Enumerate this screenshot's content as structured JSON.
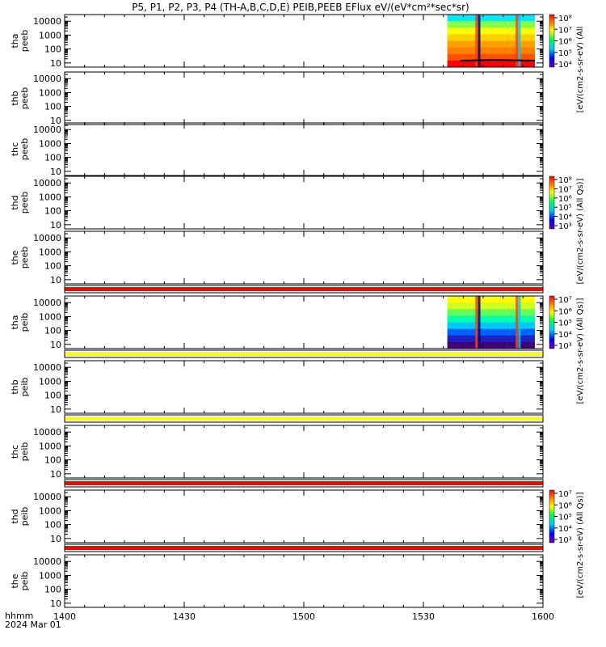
{
  "title": "P5, P1, P2, P3, P4 (TH-A,B,C,D,E) PEIB,PEEB EFlux eV/(eV*cm²*sec*sr)",
  "footer": {
    "time_label": "hhmm",
    "date_label": "2024 Mar 01"
  },
  "chart_data": {
    "type": "heatmap",
    "title": "P5, P1, P2, P3, P4 (TH-A,B,C,D,E) PEIB,PEEB EFlux eV/(eV*cm²*sec*sr)",
    "xlabel": "hhmm",
    "x_ticks": [
      "1400",
      "1430",
      "1500",
      "1530",
      "1600"
    ],
    "x_range": [
      "14:00",
      "16:00"
    ],
    "y_scale": "log",
    "y_ticks": [
      "10",
      "100",
      "1000",
      "10000"
    ],
    "colormap": [
      "#6a0094",
      "#0000ff",
      "#00c8ff",
      "#00ff60",
      "#ffff00",
      "#ff8000",
      "#ff0000"
    ],
    "panels": [
      {
        "probe": "tha",
        "product": "peeb",
        "label1": "tha",
        "label2": "peeb",
        "has_data": true,
        "data_start": "15:36",
        "data_end": "16:00",
        "bar": null
      },
      {
        "probe": "thb",
        "product": "peeb",
        "label1": "thb",
        "label2": "peeb",
        "has_data": false,
        "bar": null
      },
      {
        "probe": "thc",
        "product": "peeb",
        "label1": "thc",
        "label2": "peeb",
        "has_data": false,
        "bar": null
      },
      {
        "probe": "thd",
        "product": "peeb",
        "label1": "thd",
        "label2": "peeb",
        "has_data": false,
        "bar": null
      },
      {
        "probe": "the",
        "product": "peeb",
        "label1": "the",
        "label2": "peeb",
        "has_data": false,
        "bar": "#ff0000"
      },
      {
        "probe": "tha",
        "product": "peib",
        "label1": "tha",
        "label2": "peib",
        "has_data": true,
        "data_start": "15:36",
        "data_end": "16:00",
        "bar": "#ffff00"
      },
      {
        "probe": "thb",
        "product": "peib",
        "label1": "thb",
        "label2": "peib",
        "has_data": false,
        "bar": "#ffff00"
      },
      {
        "probe": "thc",
        "product": "peib",
        "label1": "thc",
        "label2": "peib",
        "has_data": false,
        "bar": "#ff0000"
      },
      {
        "probe": "thd",
        "product": "peib",
        "label1": "thd",
        "label2": "peib",
        "has_data": false,
        "bar": "#ff0000"
      },
      {
        "probe": "the",
        "product": "peib",
        "label1": "the",
        "label2": "peib",
        "has_data": false,
        "bar": null
      }
    ],
    "colorbars": [
      {
        "unit_label": "[eV/(cm2-s-sr-eV) (All",
        "ticks": [
          "10⁸",
          "10⁷",
          "10⁶",
          "10⁵",
          "10⁴"
        ],
        "range_exp": [
          3,
          8
        ]
      },
      {
        "unit_label": "[eV/(cm2-s-sr-eV) (All Qs)]",
        "ticks": [
          "10⁸",
          "10⁷",
          "10⁶",
          "10⁵",
          "10⁴",
          "10³"
        ],
        "range_exp": [
          3,
          8
        ]
      },
      {
        "unit_label": "[eV/(cm2-s-sr-eV) (All Qs)]",
        "ticks": [
          "10⁷",
          "10⁶",
          "10⁵",
          "10⁴",
          "10³"
        ],
        "range_exp": [
          3,
          7
        ]
      },
      {
        "unit_label": "[eV/(cm2-s-sr-eV) (All Qs)]",
        "ticks": [
          "10⁷",
          "10⁶",
          "10⁵",
          "10⁴",
          "10³"
        ],
        "range_exp": [
          3,
          7
        ]
      }
    ]
  }
}
